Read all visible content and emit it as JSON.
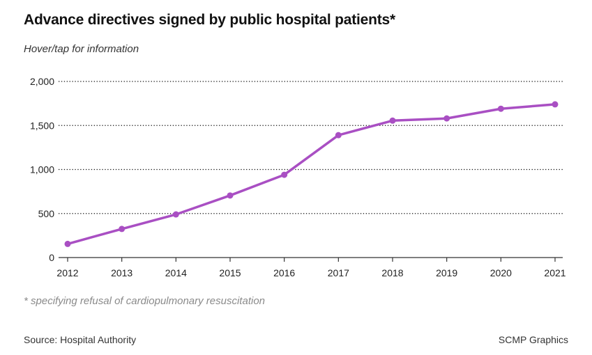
{
  "header": {
    "title": "Advance directives signed by public hospital patients*",
    "subtitle": "Hover/tap for information"
  },
  "footer": {
    "footnote": "* specifying refusal of cardiopulmonary resuscitation",
    "source": "Source: Hospital Authority",
    "credit": "SCMP Graphics"
  },
  "colors": {
    "line": "#a94fc3",
    "grid": "#111111",
    "axis": "#333333"
  },
  "chart_data": {
    "type": "line",
    "title": "Advance directives signed by public hospital patients*",
    "subtitle": "Hover/tap for information",
    "xlabel": "",
    "ylabel": "",
    "categories": [
      "2012",
      "2013",
      "2014",
      "2015",
      "2016",
      "2017",
      "2018",
      "2019",
      "2020",
      "2021"
    ],
    "series": [
      {
        "name": "Advance directives signed",
        "values": [
          155,
          325,
          490,
          705,
          940,
          1390,
          1555,
          1580,
          1690,
          1740
        ]
      }
    ],
    "ylim": [
      0,
      2000
    ],
    "yticks": [
      0,
      500,
      1000,
      1500,
      2000
    ],
    "ytick_labels": [
      "0",
      "500",
      "1,000",
      "1,500",
      "2,000"
    ],
    "grid": "horizontal dotted",
    "legend": "none",
    "markers": true
  }
}
